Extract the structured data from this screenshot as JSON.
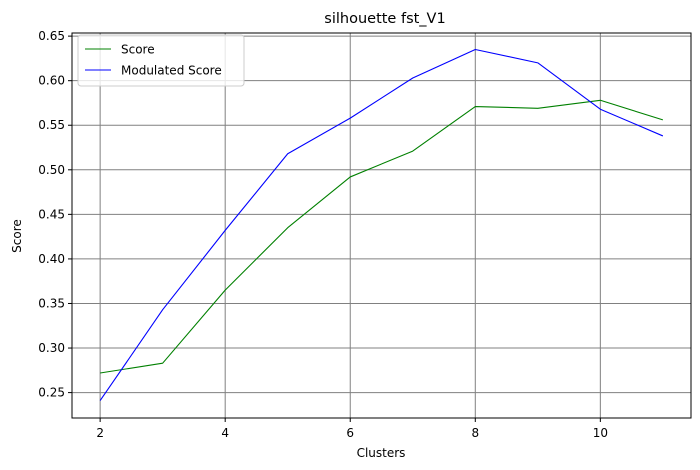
{
  "chart_data": {
    "type": "line",
    "title": "silhouette fst_V1",
    "xlabel": "Clusters",
    "ylabel": "Score",
    "x": [
      2,
      3,
      4,
      5,
      6,
      7,
      8,
      9,
      10,
      11
    ],
    "xlim": [
      1.55,
      11.45
    ],
    "ylim": [
      0.2215,
      0.6535
    ],
    "xticks": [
      2,
      4,
      6,
      8,
      10
    ],
    "yticks": [
      0.25,
      0.3,
      0.35,
      0.4,
      0.45,
      0.5,
      0.55,
      0.6,
      0.65
    ],
    "ytick_labels": [
      "0.25",
      "0.30",
      "0.35",
      "0.40",
      "0.45",
      "0.50",
      "0.55",
      "0.60",
      "0.65"
    ],
    "grid": true,
    "legend_position": "top-left",
    "series": [
      {
        "name": "Score",
        "color": "#008000",
        "values": [
          0.272,
          0.283,
          0.365,
          0.435,
          0.492,
          0.521,
          0.571,
          0.569,
          0.578,
          0.556
        ]
      },
      {
        "name": "Modulated Score",
        "color": "#0000ff",
        "values": [
          0.241,
          0.343,
          0.432,
          0.518,
          0.558,
          0.603,
          0.635,
          0.62,
          0.568,
          0.538
        ]
      }
    ]
  }
}
